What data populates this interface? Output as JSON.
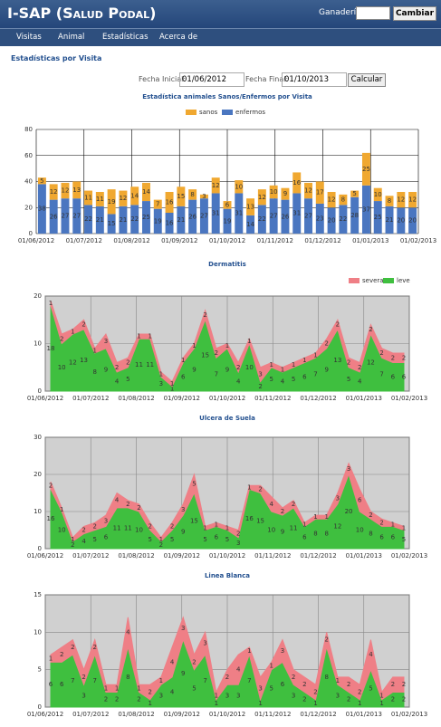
{
  "header": {
    "title": "I-SAP (Salud Podal)",
    "ganaderia_label": "Ganadería",
    "button": "Cambiar"
  },
  "nav": [
    "Visitas",
    "Animal",
    "Estadísticas",
    "Acerca de"
  ],
  "subtitle": "Estadísticas por Visita",
  "form": {
    "start_label": "Fecha Inicial:",
    "start": "01/06/2012",
    "end_label": "Fecha Final:",
    "end": "01/10/2013",
    "button": "Calcular"
  },
  "chart_data": [
    {
      "type": "bar",
      "stacked": true,
      "title": "Estadística animales Sanos/Enfermos por Visita",
      "legend": "top",
      "xlabels": [
        "01/06/2012",
        "01/07/2012",
        "01/08/2012",
        "01/09/2012",
        "01/10/2012",
        "01/11/2012",
        "01/12/2012",
        "01/01/2013",
        "01/02/2013"
      ],
      "ylim": [
        0,
        80
      ],
      "yticks": [
        0,
        20,
        40,
        60,
        80
      ],
      "grid": true,
      "series": [
        {
          "name": "enfermos",
          "color": "#4a76c0",
          "values": [
            38,
            26,
            27,
            27,
            22,
            21,
            15,
            21,
            22,
            25,
            19,
            16,
            21,
            26,
            27,
            31,
            19,
            31,
            14,
            22,
            27,
            26,
            31,
            27,
            23,
            20,
            22,
            28,
            37,
            25,
            21,
            20,
            20
          ]
        },
        {
          "name": "sanos",
          "color": "#f0a830",
          "values": [
            5,
            12,
            12,
            13,
            11,
            11,
            19,
            12,
            14,
            14,
            7,
            16,
            15,
            8,
            3,
            12,
            6,
            10,
            13,
            12,
            10,
            9,
            16,
            12,
            17,
            12,
            8,
            5,
            25,
            10,
            8,
            12,
            12
          ]
        }
      ]
    },
    {
      "type": "area",
      "stacked": true,
      "title": "Dermatitis",
      "legend": "top-right",
      "xlabels": [
        "01/06/2012",
        "01/07/2012",
        "01/08/2012",
        "01/09/2012",
        "01/10/2012",
        "01/11/2012",
        "01/12/2012",
        "01/01/2013",
        "01/02/2013"
      ],
      "ylim": [
        0,
        20
      ],
      "yticks": [
        0,
        10,
        20
      ],
      "grid": true,
      "series": [
        {
          "name": "leve",
          "color": "#3fbf3f",
          "values": [
            18,
            10,
            12,
            13,
            8,
            9,
            4,
            5,
            11,
            11,
            3,
            1,
            6,
            9,
            15,
            7,
            9,
            4,
            10,
            2,
            5,
            4,
            5,
            6,
            7,
            9,
            13,
            5,
            4,
            12,
            7,
            6,
            6
          ]
        },
        {
          "name": "severa",
          "color": "#ef7f86",
          "values": [
            1,
            2,
            1,
            2,
            1,
            3,
            2,
            2,
            1,
            1,
            1,
            1,
            1,
            1,
            2,
            2,
            1,
            2,
            1,
            3,
            1,
            1,
            1,
            1,
            1,
            2,
            2,
            2,
            2,
            2,
            2,
            2,
            2
          ]
        }
      ]
    },
    {
      "type": "area",
      "stacked": true,
      "title": "Ulcera de Suela",
      "xlabels": [
        "01/06/2012",
        "01/07/2012",
        "01/08/2012",
        "01/09/2012",
        "01/10/2012",
        "01/11/2012",
        "01/12/2012",
        "01/01/2013",
        "01/02/2013"
      ],
      "ylim": [
        0,
        30
      ],
      "yticks": [
        0,
        10,
        20,
        30
      ],
      "grid": true,
      "series": [
        {
          "name": "leve",
          "color": "#3fbf3f",
          "values": [
            16,
            10,
            2,
            4,
            5,
            6,
            11,
            11,
            10,
            5,
            2,
            5,
            9,
            15,
            5,
            6,
            5,
            3,
            16,
            15,
            10,
            9,
            11,
            6,
            8,
            8,
            12,
            20,
            10,
            8,
            6,
            6,
            5
          ]
        },
        {
          "name": "severa",
          "color": "#ef7f86",
          "values": [
            2,
            1,
            1,
            2,
            2,
            3,
            4,
            2,
            2,
            2,
            1,
            2,
            3,
            5,
            1,
            1,
            1,
            2,
            1,
            2,
            4,
            2,
            2,
            1,
            1,
            1,
            3,
            3,
            6,
            2,
            2,
            1,
            1
          ]
        }
      ]
    },
    {
      "type": "area",
      "stacked": true,
      "title": "Linea Blanca",
      "xlabels": [
        "01/06/2012",
        "01/07/2012",
        "01/08/2012",
        "01/09/2012",
        "01/10/2012",
        "01/11/2012",
        "01/12/2012",
        "01/01/2013",
        "01/02/2013"
      ],
      "ylim": [
        0,
        15
      ],
      "yticks": [
        0,
        5,
        10,
        15
      ],
      "grid": true,
      "series": [
        {
          "name": "leve",
          "color": "#3fbf3f",
          "values": [
            6,
            6,
            7,
            3,
            7,
            2,
            2,
            8,
            2,
            1,
            3,
            4,
            9,
            5,
            7,
            1,
            3,
            3,
            7,
            1,
            5,
            6,
            3,
            2,
            1,
            8,
            3,
            2,
            1,
            5,
            1,
            2,
            2
          ]
        },
        {
          "name": "severa",
          "color": "#ef7f86",
          "values": [
            1,
            2,
            2,
            2,
            2,
            1,
            1,
            4,
            1,
            2,
            1,
            4,
            3,
            2,
            3,
            1,
            2,
            4,
            1,
            3,
            1,
            3,
            2,
            2,
            2,
            2,
            1,
            2,
            2,
            4,
            1,
            2,
            2
          ]
        }
      ]
    }
  ]
}
